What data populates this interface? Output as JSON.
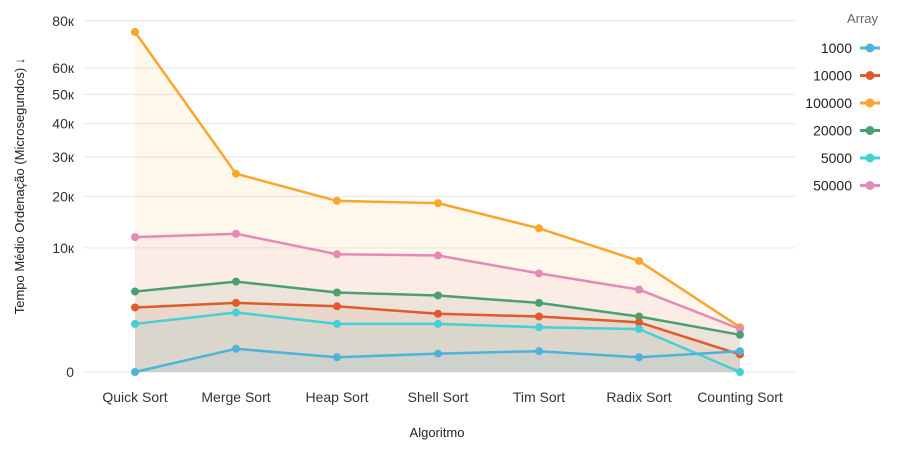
{
  "chart_data": {
    "type": "area",
    "title": "",
    "xlabel": "Algoritmo",
    "ylabel": "Tempo Médio Ordenação (Microsegundos) ↓",
    "y_scale": "sqrt",
    "ylim": [
      0,
      85000
    ],
    "y_ticks": [
      0,
      10000,
      20000,
      30000,
      40000,
      50000,
      60000,
      80000
    ],
    "y_tick_labels": [
      "0",
      "10к",
      "20к",
      "30к",
      "40к",
      "50к",
      "60к",
      "80к"
    ],
    "grid": true,
    "legend_title": "Array",
    "legend_position": "right",
    "categories": [
      "Quick Sort",
      "Merge Sort",
      "Heap Sort",
      "Shell Sort",
      "Tim Sort",
      "Radix Sort",
      "Counting Sort"
    ],
    "series": [
      {
        "name": "1000",
        "color": "#4fb3d9",
        "values": [
          0,
          350,
          140,
          220,
          280,
          140,
          280
        ]
      },
      {
        "name": "10000",
        "color": "#e05a2b",
        "values": [
          2700,
          3100,
          2800,
          2200,
          2000,
          1600,
          200
        ]
      },
      {
        "name": "100000",
        "color": "#f9a62d",
        "values": [
          75000,
          25500,
          19000,
          18500,
          13400,
          8000,
          1300
        ]
      },
      {
        "name": "20000",
        "color": "#4c9f6e",
        "values": [
          4200,
          5300,
          4100,
          3800,
          3100,
          2000,
          900
        ]
      },
      {
        "name": "5000",
        "color": "#45d0d6",
        "values": [
          1500,
          2300,
          1500,
          1500,
          1300,
          1200,
          0
        ]
      },
      {
        "name": "50000",
        "color": "#e589b6",
        "values": [
          11800,
          12400,
          9000,
          8800,
          6300,
          4400,
          1200
        ]
      }
    ]
  }
}
